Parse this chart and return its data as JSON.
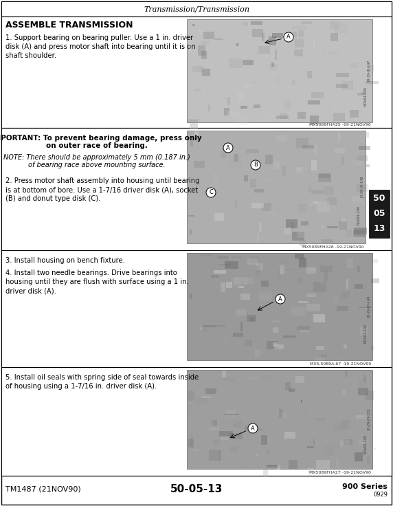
{
  "title_header": "Transmission/Transmission",
  "bg_color": "#f5f5f0",
  "page_bg": "#e8e8e0",
  "section1": {
    "heading": "ASSEMBLE TRANSMISSION",
    "text1": "1. Support bearing on bearing puller. Use a 1 in. driver\ndisk (A) and press motor shaft into bearing until it is on\nshaft shoulder.",
    "caption1": "MX5089FHA25 -19-21NOV90"
  },
  "section2": {
    "important_line1": "IMPORTANT: To prevent bearing damage, press only",
    "important_line2": "on outer race of bearing.",
    "note_line1": "NOTE: There should be approximately 5 mm (0.187 in.)",
    "note_line2": "of bearing race above mounting surface.",
    "text2": "2. Press motor shaft assembly into housing until bearing\nis at bottom of bore. Use a 1-7/16 driver disk (A), socket\n(B) and donut type disk (C).",
    "caption2": "MX5089FHA26 -19-21NOV90"
  },
  "section3": {
    "text3a": "3. Install housing on bench fixture.",
    "text3b": "4. Install two needle bearings. Drive bearings into\nhousing until they are flush with surface using a 1 in.\ndriver disk (A).",
    "caption3": "MX5,5089A,67 -19-21NOV90"
  },
  "section4": {
    "text4": "5. Install oil seals with spring side of seal towards inside\nof housing using a 1-7/16 in. driver disk (A).",
    "caption4": "MX5089FHA27 -19-21NOV90"
  },
  "footer_left": "TM1487 (21NOV90)",
  "footer_center": "50-05-13",
  "footer_right": "900 Series",
  "footer_sub": "0929",
  "tab_numbers": [
    "50",
    "05",
    "13"
  ],
  "side_label1": "JH-29-JH-147",
  "side_label2": "JH-29-JH-148",
  "side_label3": "JH-29-JH-149",
  "side_label4": "JH-29-JH-150",
  "side_label_r1": "NOV91-200",
  "side_label_r2": "NOV91-200",
  "side_label_r3": "NOV91-200",
  "side_label_r4": "NOV91-200"
}
